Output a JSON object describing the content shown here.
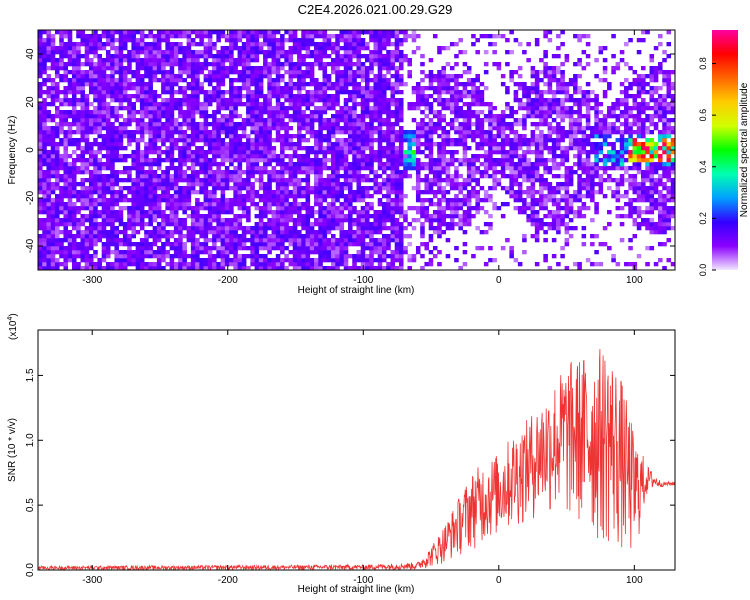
{
  "title": "C2E4.2026.021.00.29.G29",
  "chart_data": [
    {
      "type": "heatmap",
      "xlabel": "Height of straight line (km)",
      "ylabel": "Frequency (Hz)",
      "xlim": [
        -340,
        130
      ],
      "ylim": [
        -50,
        50
      ],
      "xticks": [
        -300,
        -200,
        -100,
        0,
        100
      ],
      "yticks": [
        -40,
        -20,
        0,
        20,
        40
      ],
      "colorbar": {
        "label": "Normalized spectral amplitude",
        "range": [
          0,
          0.93
        ],
        "ticks": [
          0.0,
          0.2,
          0.4,
          0.6,
          0.8
        ],
        "colors": [
          "#f2e6ff",
          "#8a00ff",
          "#3300ff",
          "#00a0ff",
          "#00ffb0",
          "#00ff00",
          "#d0ff00",
          "#ffcc00",
          "#ff6600",
          "#ff0000",
          "#ff00a0"
        ]
      },
      "regions": [
        {
          "x": [
            -340,
            -70
          ],
          "description_level": 0.12,
          "freq_spread": 50
        },
        {
          "x": [
            -68,
            -60
          ],
          "peak_level": 0.5,
          "freq_center": 0
        },
        {
          "x": [
            -60,
            130
          ],
          "level": 0.15,
          "freq_spread": 30
        },
        {
          "x": [
            100,
            130
          ],
          "peak_level": 0.93,
          "freq_center": 0
        }
      ]
    },
    {
      "type": "area",
      "xlabel": "Height of straight line (km)",
      "ylabel": "SNR (10 * v/v)",
      "multiplier": "(x10",
      "multiplier_exp": "4",
      "multiplier_close": ")",
      "xlim": [
        -340,
        130
      ],
      "ylim": [
        0,
        1.85
      ],
      "xticks": [
        -300,
        -200,
        -100,
        0,
        100
      ],
      "yticks": [
        0.0,
        0.5,
        1.0,
        1.5
      ],
      "color": "#ee3333",
      "envelope": {
        "x": [
          -340,
          -100,
          -60,
          -50,
          -40,
          -30,
          -20,
          -10,
          0,
          10,
          20,
          30,
          40,
          50,
          60,
          70,
          80,
          90,
          100,
          110,
          120,
          130
        ],
        "max": [
          0.03,
          0.04,
          0.06,
          0.18,
          0.35,
          0.55,
          0.75,
          0.85,
          0.9,
          1.05,
          1.15,
          1.3,
          1.45,
          1.6,
          1.65,
          1.7,
          1.75,
          1.5,
          1.05,
          0.8,
          0.68,
          0.68
        ],
        "min": [
          0.0,
          0.0,
          0.0,
          0.02,
          0.05,
          0.1,
          0.15,
          0.2,
          0.25,
          0.3,
          0.35,
          0.4,
          0.4,
          0.35,
          0.3,
          0.2,
          0.15,
          0.1,
          0.05,
          0.6,
          0.64,
          0.65
        ]
      }
    }
  ]
}
